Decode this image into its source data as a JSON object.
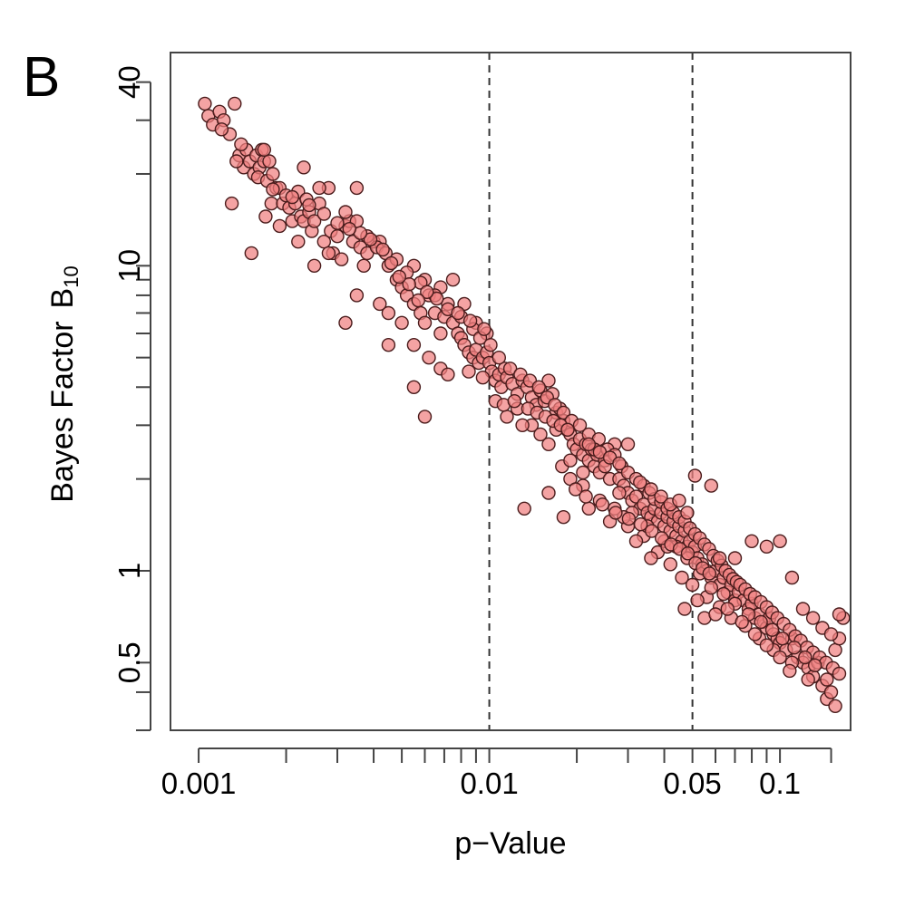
{
  "panel_label": "B",
  "chart_data": {
    "type": "scatter",
    "title": "",
    "xlabel": "p−Value",
    "ylabel": "Bayes Factor",
    "ylabel_symbol": "B",
    "ylabel_subscript": "10",
    "x_scale": "log",
    "y_scale": "log",
    "xlim": [
      0.0008,
      0.175
    ],
    "ylim": [
      0.3,
      50
    ],
    "x_ticks_labeled": [
      {
        "value": 0.001,
        "label": "0.001"
      },
      {
        "value": 0.01,
        "label": "0.01"
      },
      {
        "value": 0.05,
        "label": "0.05"
      },
      {
        "value": 0.1,
        "label": "0.1"
      }
    ],
    "x_ticks_minor": [
      0.002,
      0.003,
      0.004,
      0.005,
      0.006,
      0.007,
      0.008,
      0.009,
      0.02,
      0.03,
      0.04,
      0.06,
      0.07,
      0.08,
      0.09,
      0.15
    ],
    "y_ticks_labeled": [
      {
        "value": 40,
        "label": "40"
      },
      {
        "value": 10,
        "label": "10"
      },
      {
        "value": 1,
        "label": "1"
      },
      {
        "value": 0.5,
        "label": "0.5"
      }
    ],
    "y_ticks_minor": [
      30,
      20,
      9,
      8,
      7,
      6,
      5,
      4,
      3,
      2,
      0.4,
      0.3
    ],
    "reference_lines_x": [
      0.01,
      0.05
    ],
    "grid": false,
    "legend": "none",
    "marker_fill": "#f08080",
    "marker_edge": "#4a1c1c",
    "points": [
      [
        0.00105,
        34
      ],
      [
        0.00108,
        31
      ],
      [
        0.00112,
        29
      ],
      [
        0.00118,
        32
      ],
      [
        0.00122,
        30
      ],
      [
        0.00128,
        27
      ],
      [
        0.00133,
        34
      ],
      [
        0.0013,
        16
      ],
      [
        0.00138,
        23
      ],
      [
        0.00143,
        21
      ],
      [
        0.00146,
        24
      ],
      [
        0.0015,
        22
      ],
      [
        0.00155,
        20
      ],
      [
        0.00158,
        23
      ],
      [
        0.00162,
        21
      ],
      [
        0.00165,
        24
      ],
      [
        0.0016,
        19.5
      ],
      [
        0.00168,
        22
      ],
      [
        0.00172,
        19
      ],
      [
        0.0018,
        20
      ],
      [
        0.00185,
        18
      ],
      [
        0.00178,
        16
      ],
      [
        0.00152,
        11
      ],
      [
        0.0019,
        18
      ],
      [
        0.00195,
        16
      ],
      [
        0.002,
        17
      ],
      [
        0.00205,
        15.5
      ],
      [
        0.0021,
        14
      ],
      [
        0.00215,
        16
      ],
      [
        0.0022,
        17.5
      ],
      [
        0.00225,
        14.5
      ],
      [
        0.0023,
        14
      ],
      [
        0.00235,
        16.5
      ],
      [
        0.0024,
        15
      ],
      [
        0.00245,
        13
      ],
      [
        0.0025,
        14
      ],
      [
        0.0026,
        16
      ],
      [
        0.0027,
        12
      ],
      [
        0.0028,
        18
      ],
      [
        0.00285,
        13
      ],
      [
        0.0029,
        11
      ],
      [
        0.003,
        12.5
      ],
      [
        0.0031,
        10.5
      ],
      [
        0.0032,
        13.5
      ],
      [
        0.0033,
        14
      ],
      [
        0.0034,
        12
      ],
      [
        0.0035,
        18
      ],
      [
        0.0036,
        11.5
      ],
      [
        0.0037,
        10
      ],
      [
        0.0038,
        11
      ],
      [
        0.004,
        12
      ],
      [
        0.0042,
        12
      ],
      [
        0.0045,
        10
      ],
      [
        0.0048,
        9
      ],
      [
        0.005,
        8.5
      ],
      [
        0.0052,
        8
      ],
      [
        0.0055,
        7.5
      ],
      [
        0.0058,
        7
      ],
      [
        0.006,
        6.5
      ],
      [
        0.0062,
        8
      ],
      [
        0.0065,
        7
      ],
      [
        0.0068,
        6
      ],
      [
        0.007,
        6.8
      ],
      [
        0.0072,
        7.5
      ],
      [
        0.0075,
        6.5
      ],
      [
        0.0078,
        6
      ],
      [
        0.008,
        5.8
      ],
      [
        0.0082,
        5.5
      ],
      [
        0.0085,
        5.2
      ],
      [
        0.0088,
        5
      ],
      [
        0.009,
        5.3
      ],
      [
        0.0092,
        4.8
      ],
      [
        0.0095,
        5
      ],
      [
        0.0098,
        5.2
      ],
      [
        0.01,
        4.8
      ],
      [
        0.0102,
        4.5
      ],
      [
        0.0105,
        4.2
      ],
      [
        0.0108,
        4.4
      ],
      [
        0.011,
        4
      ],
      [
        0.0113,
        4.6
      ],
      [
        0.0115,
        4.3
      ],
      [
        0.012,
        4.1
      ],
      [
        0.0125,
        3.8
      ],
      [
        0.013,
        4.2
      ],
      [
        0.0135,
        4
      ],
      [
        0.014,
        3.7
      ],
      [
        0.0145,
        3.5
      ],
      [
        0.015,
        3.9
      ],
      [
        0.0155,
        3.6
      ],
      [
        0.016,
        4.2
      ],
      [
        0.0165,
        3.8
      ],
      [
        0.017,
        3.3
      ],
      [
        0.0175,
        3.4
      ],
      [
        0.018,
        3.1
      ],
      [
        0.0185,
        2.9
      ],
      [
        0.019,
        2.8
      ],
      [
        0.0195,
        2.6
      ],
      [
        0.02,
        2.5
      ],
      [
        0.0205,
        2.7
      ],
      [
        0.021,
        2.4
      ],
      [
        0.0215,
        2.6
      ],
      [
        0.022,
        2.3
      ],
      [
        0.0225,
        2.5
      ],
      [
        0.023,
        2.2
      ],
      [
        0.0235,
        2.4
      ],
      [
        0.024,
        2.1
      ],
      [
        0.025,
        2.3
      ],
      [
        0.026,
        2
      ],
      [
        0.027,
        2.6
      ],
      [
        0.028,
        2
      ],
      [
        0.029,
        1.9
      ],
      [
        0.03,
        1.8
      ],
      [
        0.031,
        1.7
      ],
      [
        0.032,
        1.75
      ],
      [
        0.033,
        1.6
      ],
      [
        0.034,
        1.65
      ],
      [
        0.035,
        1.55
      ],
      [
        0.036,
        1.5
      ],
      [
        0.037,
        1.6
      ],
      [
        0.038,
        1.45
      ],
      [
        0.039,
        1.55
      ],
      [
        0.04,
        1.4
      ],
      [
        0.041,
        1.5
      ],
      [
        0.042,
        1.35
      ],
      [
        0.043,
        1.45
      ],
      [
        0.044,
        1.3
      ],
      [
        0.045,
        1.4
      ],
      [
        0.046,
        1.25
      ],
      [
        0.047,
        1.35
      ],
      [
        0.048,
        1.2
      ],
      [
        0.049,
        1.25
      ],
      [
        0.05,
        1.15
      ],
      [
        0.051,
        1.2
      ],
      [
        0.052,
        1.1
      ],
      [
        0.054,
        1.05
      ],
      [
        0.056,
        1
      ],
      [
        0.058,
        0.95
      ],
      [
        0.06,
        1
      ],
      [
        0.062,
        0.9
      ],
      [
        0.064,
        0.95
      ],
      [
        0.066,
        0.85
      ],
      [
        0.068,
        0.9
      ],
      [
        0.07,
        0.8
      ],
      [
        0.072,
        0.85
      ],
      [
        0.075,
        0.8
      ],
      [
        0.078,
        0.75
      ],
      [
        0.08,
        0.78
      ],
      [
        0.082,
        0.7
      ],
      [
        0.085,
        0.72
      ],
      [
        0.088,
        0.68
      ],
      [
        0.09,
        0.65
      ],
      [
        0.092,
        0.7
      ],
      [
        0.095,
        0.62
      ],
      [
        0.098,
        0.6
      ],
      [
        0.1,
        0.58
      ],
      [
        0.105,
        0.55
      ],
      [
        0.11,
        0.6
      ],
      [
        0.115,
        0.52
      ],
      [
        0.12,
        0.5
      ],
      [
        0.125,
        0.48
      ],
      [
        0.13,
        0.45
      ],
      [
        0.135,
        0.5
      ],
      [
        0.14,
        0.42
      ],
      [
        0.145,
        0.38
      ],
      [
        0.15,
        0.4
      ],
      [
        0.155,
        0.55
      ],
      [
        0.16,
        0.6
      ],
      [
        0.165,
        0.7
      ],
      [
        0.0055,
        10
      ],
      [
        0.006,
        9
      ],
      [
        0.0068,
        8.5
      ],
      [
        0.0075,
        9
      ],
      [
        0.0082,
        7.5
      ],
      [
        0.009,
        6.5
      ],
      [
        0.0098,
        6
      ],
      [
        0.0085,
        4.5
      ],
      [
        0.0095,
        4.3
      ],
      [
        0.0105,
        3.6
      ],
      [
        0.0115,
        3.2
      ],
      [
        0.0125,
        3.4
      ],
      [
        0.014,
        3
      ],
      [
        0.016,
        2.6
      ],
      [
        0.0178,
        2.2
      ],
      [
        0.019,
        2
      ],
      [
        0.021,
        1.9
      ],
      [
        0.024,
        1.7
      ],
      [
        0.027,
        1.6
      ],
      [
        0.03,
        1.4
      ],
      [
        0.034,
        1.3
      ],
      [
        0.038,
        1.15
      ],
      [
        0.042,
        1.05
      ],
      [
        0.046,
        0.95
      ],
      [
        0.05,
        0.9
      ],
      [
        0.056,
        0.82
      ],
      [
        0.062,
        0.76
      ],
      [
        0.068,
        0.7
      ],
      [
        0.076,
        0.66
      ],
      [
        0.085,
        0.6
      ],
      [
        0.095,
        0.55
      ],
      [
        0.11,
        0.5
      ],
      [
        0.0045,
        7
      ],
      [
        0.005,
        6.5
      ],
      [
        0.0055,
        5.5
      ],
      [
        0.0062,
        5
      ],
      [
        0.0068,
        4.6
      ],
      [
        0.0072,
        4.4
      ],
      [
        0.0055,
        4
      ],
      [
        0.006,
        3.2
      ],
      [
        0.0045,
        5.5
      ],
      [
        0.0042,
        7.5
      ],
      [
        0.0035,
        8
      ],
      [
        0.0032,
        6.5
      ],
      [
        0.0028,
        11
      ],
      [
        0.0025,
        10
      ],
      [
        0.0022,
        12
      ],
      [
        0.0019,
        13.5
      ],
      [
        0.0017,
        14.5
      ],
      [
        0.0023,
        21
      ],
      [
        0.0026,
        18
      ],
      [
        0.0032,
        15
      ],
      [
        0.0035,
        14
      ],
      [
        0.0038,
        12.5
      ],
      [
        0.0041,
        11.5
      ],
      [
        0.0044,
        11
      ],
      [
        0.0048,
        10.5
      ],
      [
        0.0052,
        9.5
      ],
      [
        0.0058,
        8.8
      ],
      [
        0.0065,
        8
      ],
      [
        0.0072,
        7.2
      ],
      [
        0.008,
        6.8
      ],
      [
        0.0088,
        6.2
      ],
      [
        0.0093,
        5.8
      ],
      [
        0.0101,
        5.5
      ],
      [
        0.0108,
        5
      ],
      [
        0.0118,
        4.6
      ],
      [
        0.0128,
        4.4
      ],
      [
        0.0138,
        4.2
      ],
      [
        0.0148,
        4
      ],
      [
        0.0158,
        3.7
      ],
      [
        0.0168,
        3.5
      ],
      [
        0.018,
        3.3
      ],
      [
        0.0192,
        3.1
      ],
      [
        0.0205,
        3
      ],
      [
        0.022,
        2.8
      ],
      [
        0.0238,
        2.7
      ],
      [
        0.0255,
        2.5
      ],
      [
        0.027,
        2.4
      ],
      [
        0.0285,
        2.2
      ],
      [
        0.03,
        2.1
      ],
      [
        0.032,
        2
      ],
      [
        0.034,
        1.9
      ],
      [
        0.0355,
        1.8
      ],
      [
        0.037,
        1.72
      ],
      [
        0.039,
        1.68
      ],
      [
        0.041,
        1.6
      ],
      [
        0.043,
        1.55
      ],
      [
        0.045,
        1.5
      ],
      [
        0.047,
        1.45
      ],
      [
        0.049,
        1.38
      ],
      [
        0.051,
        1.32
      ],
      [
        0.053,
        1.28
      ],
      [
        0.055,
        1.22
      ],
      [
        0.057,
        1.18
      ],
      [
        0.059,
        1.12
      ],
      [
        0.061,
        1.08
      ],
      [
        0.063,
        1.04
      ],
      [
        0.065,
        1
      ],
      [
        0.067,
        0.97
      ],
      [
        0.069,
        0.94
      ],
      [
        0.071,
        0.92
      ],
      [
        0.073,
        0.9
      ],
      [
        0.076,
        0.87
      ],
      [
        0.079,
        0.84
      ],
      [
        0.082,
        0.82
      ],
      [
        0.086,
        0.79
      ],
      [
        0.09,
        0.76
      ],
      [
        0.094,
        0.73
      ],
      [
        0.098,
        0.7
      ],
      [
        0.103,
        0.67
      ],
      [
        0.108,
        0.64
      ],
      [
        0.113,
        0.61
      ],
      [
        0.118,
        0.59
      ],
      [
        0.124,
        0.56
      ],
      [
        0.13,
        0.54
      ],
      [
        0.137,
        0.52
      ],
      [
        0.144,
        0.5
      ],
      [
        0.152,
        0.48
      ],
      [
        0.16,
        0.46
      ],
      [
        0.013,
        3
      ],
      [
        0.015,
        2.8
      ],
      [
        0.017,
        2.9
      ],
      [
        0.019,
        2.3
      ],
      [
        0.021,
        2.1
      ],
      [
        0.023,
        2.5
      ],
      [
        0.025,
        2.2
      ],
      [
        0.028,
        1.8
      ],
      [
        0.031,
        1.55
      ],
      [
        0.035,
        1.4
      ],
      [
        0.04,
        1.25
      ],
      [
        0.044,
        1.2
      ],
      [
        0.048,
        1.1
      ],
      [
        0.053,
        0.98
      ],
      [
        0.058,
        0.88
      ],
      [
        0.064,
        0.84
      ],
      [
        0.07,
        0.78
      ],
      [
        0.078,
        0.72
      ],
      [
        0.086,
        0.68
      ],
      [
        0.094,
        0.64
      ],
      [
        0.102,
        0.6
      ],
      [
        0.112,
        0.56
      ],
      [
        0.122,
        0.52
      ],
      [
        0.132,
        0.49
      ],
      [
        0.0132,
        1.6
      ],
      [
        0.016,
        1.8
      ],
      [
        0.018,
        1.5
      ],
      [
        0.022,
        1.6
      ],
      [
        0.026,
        1.45
      ],
      [
        0.029,
        1.5
      ],
      [
        0.032,
        1.25
      ],
      [
        0.036,
        1.1
      ],
      [
        0.041,
        1.2
      ],
      [
        0.047,
        0.75
      ],
      [
        0.052,
        0.8
      ],
      [
        0.055,
        0.7
      ],
      [
        0.06,
        0.72
      ],
      [
        0.066,
        0.75
      ],
      [
        0.074,
        0.68
      ],
      [
        0.082,
        0.62
      ],
      [
        0.09,
        0.57
      ],
      [
        0.1,
        0.52
      ],
      [
        0.108,
        0.47
      ],
      [
        0.125,
        0.44
      ],
      [
        0.145,
        0.44
      ],
      [
        0.155,
        0.36
      ],
      [
        0.022,
        2.6
      ],
      [
        0.024,
        2.45
      ],
      [
        0.026,
        2.35
      ],
      [
        0.028,
        2.25
      ],
      [
        0.03,
        2.6
      ],
      [
        0.033,
        1.95
      ],
      [
        0.036,
        1.85
      ],
      [
        0.039,
        1.75
      ],
      [
        0.042,
        1.65
      ],
      [
        0.045,
        1.7
      ],
      [
        0.048,
        1.55
      ],
      [
        0.051,
        2.05
      ],
      [
        0.058,
        1.9
      ],
      [
        0.062,
        1.1
      ],
      [
        0.07,
        1.1
      ],
      [
        0.08,
        1.25
      ],
      [
        0.09,
        1.2
      ],
      [
        0.1,
        1.25
      ],
      [
        0.11,
        0.95
      ],
      [
        0.12,
        0.75
      ],
      [
        0.13,
        0.7
      ],
      [
        0.14,
        0.65
      ],
      [
        0.15,
        0.62
      ],
      [
        0.16,
        0.72
      ],
      [
        0.0198,
        1.85
      ],
      [
        0.0215,
        1.75
      ],
      [
        0.0245,
        1.65
      ],
      [
        0.0272,
        1.55
      ],
      [
        0.0302,
        1.48
      ],
      [
        0.0332,
        1.42
      ],
      [
        0.0362,
        1.35
      ],
      [
        0.0392,
        1.28
      ],
      [
        0.0422,
        1.22
      ],
      [
        0.0452,
        1.18
      ],
      [
        0.0482,
        1.14
      ],
      [
        0.0512,
        1.06
      ],
      [
        0.0542,
        1.02
      ],
      [
        0.0572,
        0.98
      ],
      [
        0.0112,
        3.5
      ],
      [
        0.0122,
        3.6
      ],
      [
        0.0136,
        3.4
      ],
      [
        0.0146,
        3.3
      ],
      [
        0.0156,
        3.2
      ],
      [
        0.0166,
        3.1
      ],
      [
        0.0176,
        3
      ],
      [
        0.0186,
        2.9
      ],
      [
        0.0078,
        7
      ],
      [
        0.0086,
        6.6
      ],
      [
        0.0096,
        6.2
      ],
      [
        0.0066,
        7.8
      ],
      [
        0.0061,
        8.2
      ],
      [
        0.0057,
        7.7
      ],
      [
        0.0053,
        8.7
      ],
      [
        0.0049,
        9.2
      ],
      [
        0.0046,
        10.2
      ],
      [
        0.0043,
        11.3
      ],
      [
        0.0039,
        12.2
      ],
      [
        0.0036,
        12.8
      ],
      [
        0.0033,
        13.2
      ],
      [
        0.003,
        13.8
      ],
      [
        0.0027,
        14.8
      ],
      [
        0.0024,
        15.8
      ],
      [
        0.0021,
        16.8
      ],
      [
        0.0018,
        17.8
      ],
      [
        0.00175,
        22
      ],
      [
        0.00168,
        24
      ],
      [
        0.0014,
        25
      ],
      [
        0.00135,
        22
      ],
      [
        0.0012,
        28
      ]
    ]
  }
}
